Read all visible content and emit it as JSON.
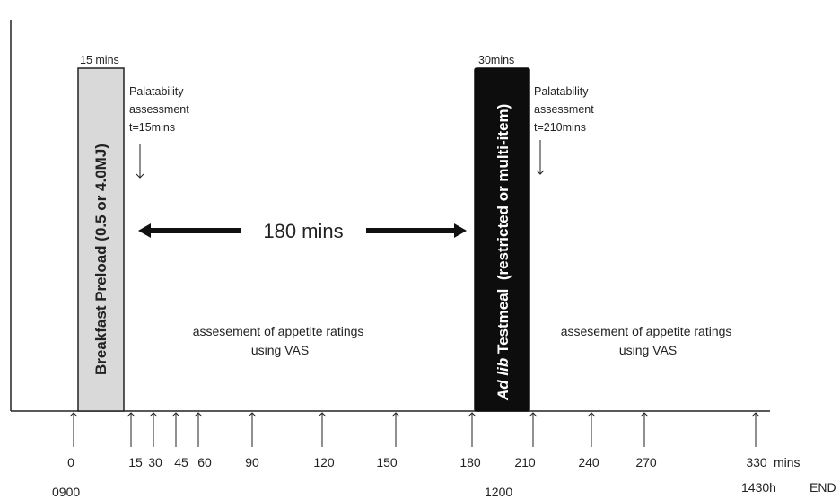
{
  "preload": {
    "duration_label": "15 mins",
    "bar_label": "Breakfast  Preload (0.5 or 4.0MJ)",
    "palatability_lines": [
      "Palatability",
      "assessment",
      "t=15mins"
    ]
  },
  "testmeal": {
    "duration_label": "30mins",
    "bar_label_italic": "Ad lib",
    "bar_label_rest": " Testmeal  (restricted or multi-item)",
    "palatability_lines": [
      "Palatability",
      "assessment",
      "t=210mins"
    ]
  },
  "interval_label": "180 mins",
  "appetite_left": [
    "assesement of appetite ratings",
    "using VAS"
  ],
  "appetite_right": [
    "assesement of appetite ratings",
    "using VAS"
  ],
  "timeline": {
    "unit_label": "mins",
    "ticks": [
      "0",
      "15",
      "30",
      "45",
      "60",
      "90",
      "120",
      "150",
      "180",
      "210",
      "240",
      "270",
      "330"
    ]
  },
  "clock": {
    "start": "0900",
    "mid": "1200",
    "end": "1430h",
    "end_word": "END"
  }
}
